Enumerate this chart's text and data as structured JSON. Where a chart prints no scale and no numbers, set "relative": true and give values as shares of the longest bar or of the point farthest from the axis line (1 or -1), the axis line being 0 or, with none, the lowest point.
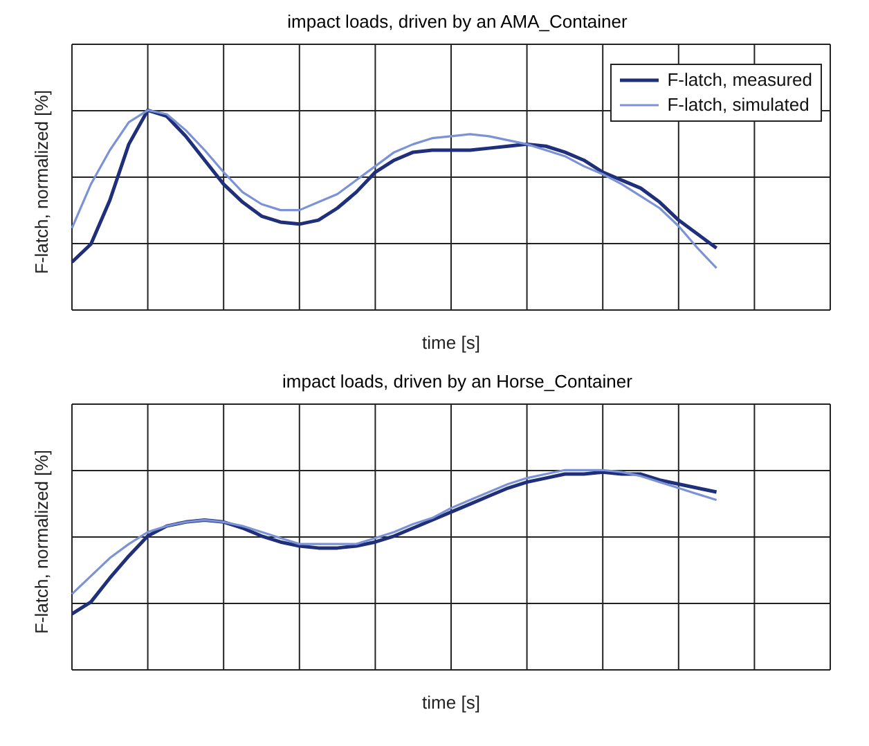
{
  "chart_data": [
    {
      "type": "line",
      "title": "impact loads, driven by an AMA_Container",
      "xlabel": "time [s]",
      "ylabel": "F-latch, normalized [%]",
      "relative": true,
      "grid": true,
      "legend": "top right",
      "marker": "none",
      "line_style": "solid",
      "categories": [
        null,
        null,
        null,
        null,
        null,
        null,
        null,
        null,
        null,
        null,
        null,
        null,
        null,
        null,
        null,
        null,
        null,
        null,
        null,
        null,
        null,
        null,
        null,
        null,
        null,
        null,
        null,
        null,
        null,
        null,
        null,
        null,
        null,
        null,
        null,
        null,
        null,
        null,
        null,
        null,
        null
      ],
      "series": [
        {
          "name": "F-latch, measured",
          "color": "#1f2f7a",
          "values": [
            0.24,
            0.33,
            0.55,
            0.83,
            1.0,
            0.97,
            0.87,
            0.75,
            0.63,
            0.54,
            0.47,
            0.44,
            0.43,
            0.45,
            0.51,
            0.59,
            0.69,
            0.75,
            0.79,
            0.8,
            0.8,
            0.8,
            0.81,
            0.82,
            0.83,
            0.82,
            0.79,
            0.75,
            0.69,
            0.65,
            0.61,
            0.54,
            0.45,
            0.38,
            0.31,
            null,
            null,
            null,
            null,
            null,
            null
          ]
        },
        {
          "name": "F-latch, simulated",
          "color": "#7b93d6",
          "values": [
            0.41,
            0.63,
            0.8,
            0.94,
            1.0,
            0.98,
            0.9,
            0.8,
            0.69,
            0.59,
            0.53,
            0.5,
            0.5,
            0.54,
            0.58,
            0.65,
            0.72,
            0.79,
            0.83,
            0.86,
            0.87,
            0.88,
            0.87,
            0.85,
            0.83,
            0.8,
            0.77,
            0.72,
            0.68,
            0.63,
            0.57,
            0.51,
            0.42,
            0.31,
            0.21,
            null,
            null,
            null,
            null,
            null,
            null
          ]
        }
      ]
    },
    {
      "type": "line",
      "title": "impact loads, driven by an Horse_Container",
      "xlabel": "time [s]",
      "ylabel": "F-latch, normalized [%]",
      "relative": true,
      "grid": true,
      "marker": "none",
      "line_style": "solid",
      "categories": [
        null,
        null,
        null,
        null,
        null,
        null,
        null,
        null,
        null,
        null,
        null,
        null,
        null,
        null,
        null,
        null,
        null,
        null,
        null,
        null,
        null,
        null,
        null,
        null,
        null,
        null,
        null,
        null,
        null,
        null,
        null,
        null,
        null,
        null,
        null,
        null,
        null,
        null,
        null,
        null,
        null
      ],
      "series": [
        {
          "color": "#1f2f7a",
          "values": [
            0.28,
            0.34,
            0.46,
            0.57,
            0.67,
            0.72,
            0.74,
            0.75,
            0.74,
            0.71,
            0.67,
            0.64,
            0.62,
            0.61,
            0.61,
            0.62,
            0.64,
            0.67,
            0.71,
            0.75,
            0.79,
            0.83,
            0.87,
            0.91,
            0.94,
            0.96,
            0.98,
            0.98,
            0.99,
            0.98,
            0.98,
            0.95,
            0.93,
            0.91,
            0.89,
            null,
            null,
            null,
            null,
            null,
            null
          ]
        },
        {
          "color": "#7b93d6",
          "values": [
            0.38,
            0.47,
            0.56,
            0.63,
            0.69,
            0.72,
            0.74,
            0.75,
            0.74,
            0.72,
            0.69,
            0.66,
            0.63,
            0.63,
            0.63,
            0.63,
            0.66,
            0.69,
            0.73,
            0.76,
            0.81,
            0.85,
            0.89,
            0.93,
            0.96,
            0.98,
            1.0,
            1.0,
            1.0,
            0.99,
            0.97,
            0.94,
            0.91,
            0.88,
            0.85,
            null,
            null,
            null,
            null,
            null,
            null
          ]
        }
      ]
    }
  ]
}
